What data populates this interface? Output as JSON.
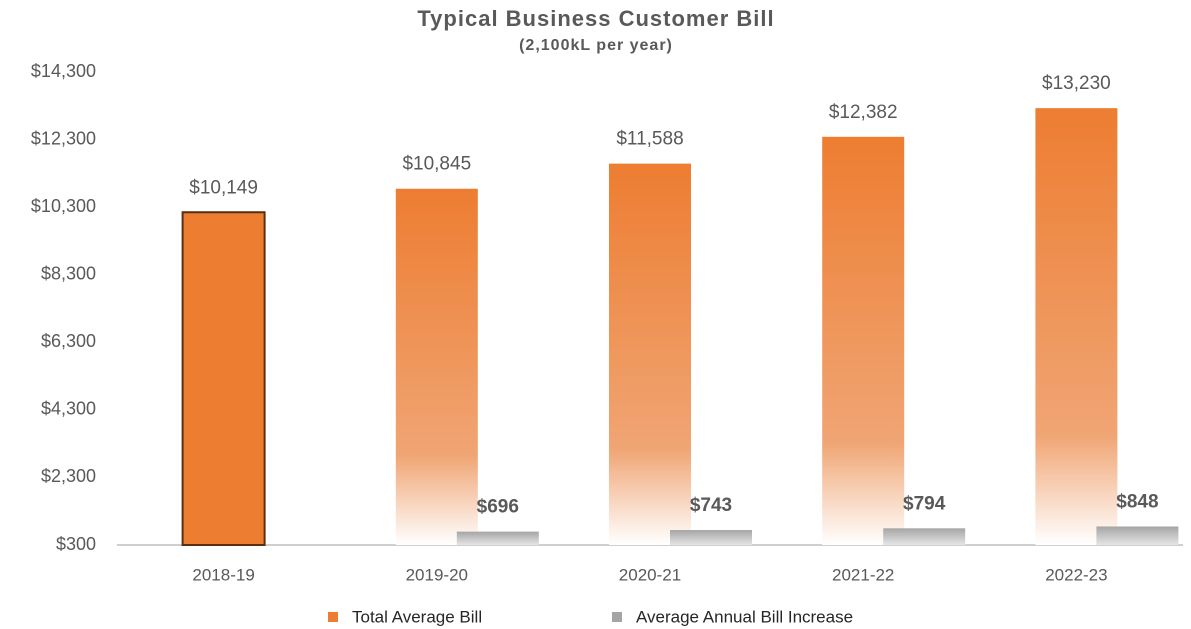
{
  "chart_data": {
    "type": "bar",
    "title": "Typical Business Customer Bill",
    "subtitle": "(2,100kL per year)",
    "categories": [
      "2018-19",
      "2019-20",
      "2020-21",
      "2021-22",
      "2022-23"
    ],
    "series": [
      {
        "name": "Total Average Bill",
        "color": "#ed7d31",
        "values": [
          10149,
          10845,
          11588,
          12382,
          13230
        ],
        "value_labels": [
          "$10,149",
          "$10,845",
          "$11,588",
          "$12,382",
          "$13,230"
        ]
      },
      {
        "name": "Average Annual Bill Increase",
        "color": "#a5a5a5",
        "values": [
          null,
          696,
          743,
          794,
          848
        ],
        "value_labels": [
          null,
          "$696",
          "$743",
          "$794",
          "$848"
        ]
      }
    ],
    "ylim": [
      300,
      14300
    ],
    "yticks": [
      {
        "value": 300,
        "label": "$300"
      },
      {
        "value": 2300,
        "label": "$2,300"
      },
      {
        "value": 4300,
        "label": "$4,300"
      },
      {
        "value": 6300,
        "label": "$6,300"
      },
      {
        "value": 8300,
        "label": "$8,300"
      },
      {
        "value": 10300,
        "label": "$10,300"
      },
      {
        "value": 12300,
        "label": "$12,300"
      },
      {
        "value": 14300,
        "label": "$14,300"
      }
    ],
    "grid": false,
    "legend": "bottom"
  }
}
